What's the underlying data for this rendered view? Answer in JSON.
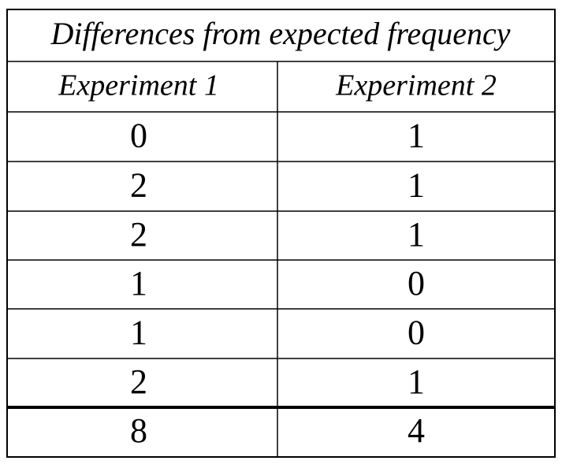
{
  "table": {
    "title": "Differences from expected frequency",
    "headers": [
      "Experiment 1",
      "Experiment 2"
    ],
    "rows": [
      [
        0,
        1
      ],
      [
        2,
        1
      ],
      [
        2,
        1
      ],
      [
        1,
        0
      ],
      [
        1,
        0
      ],
      [
        2,
        1
      ]
    ],
    "total": [
      8,
      4
    ]
  }
}
